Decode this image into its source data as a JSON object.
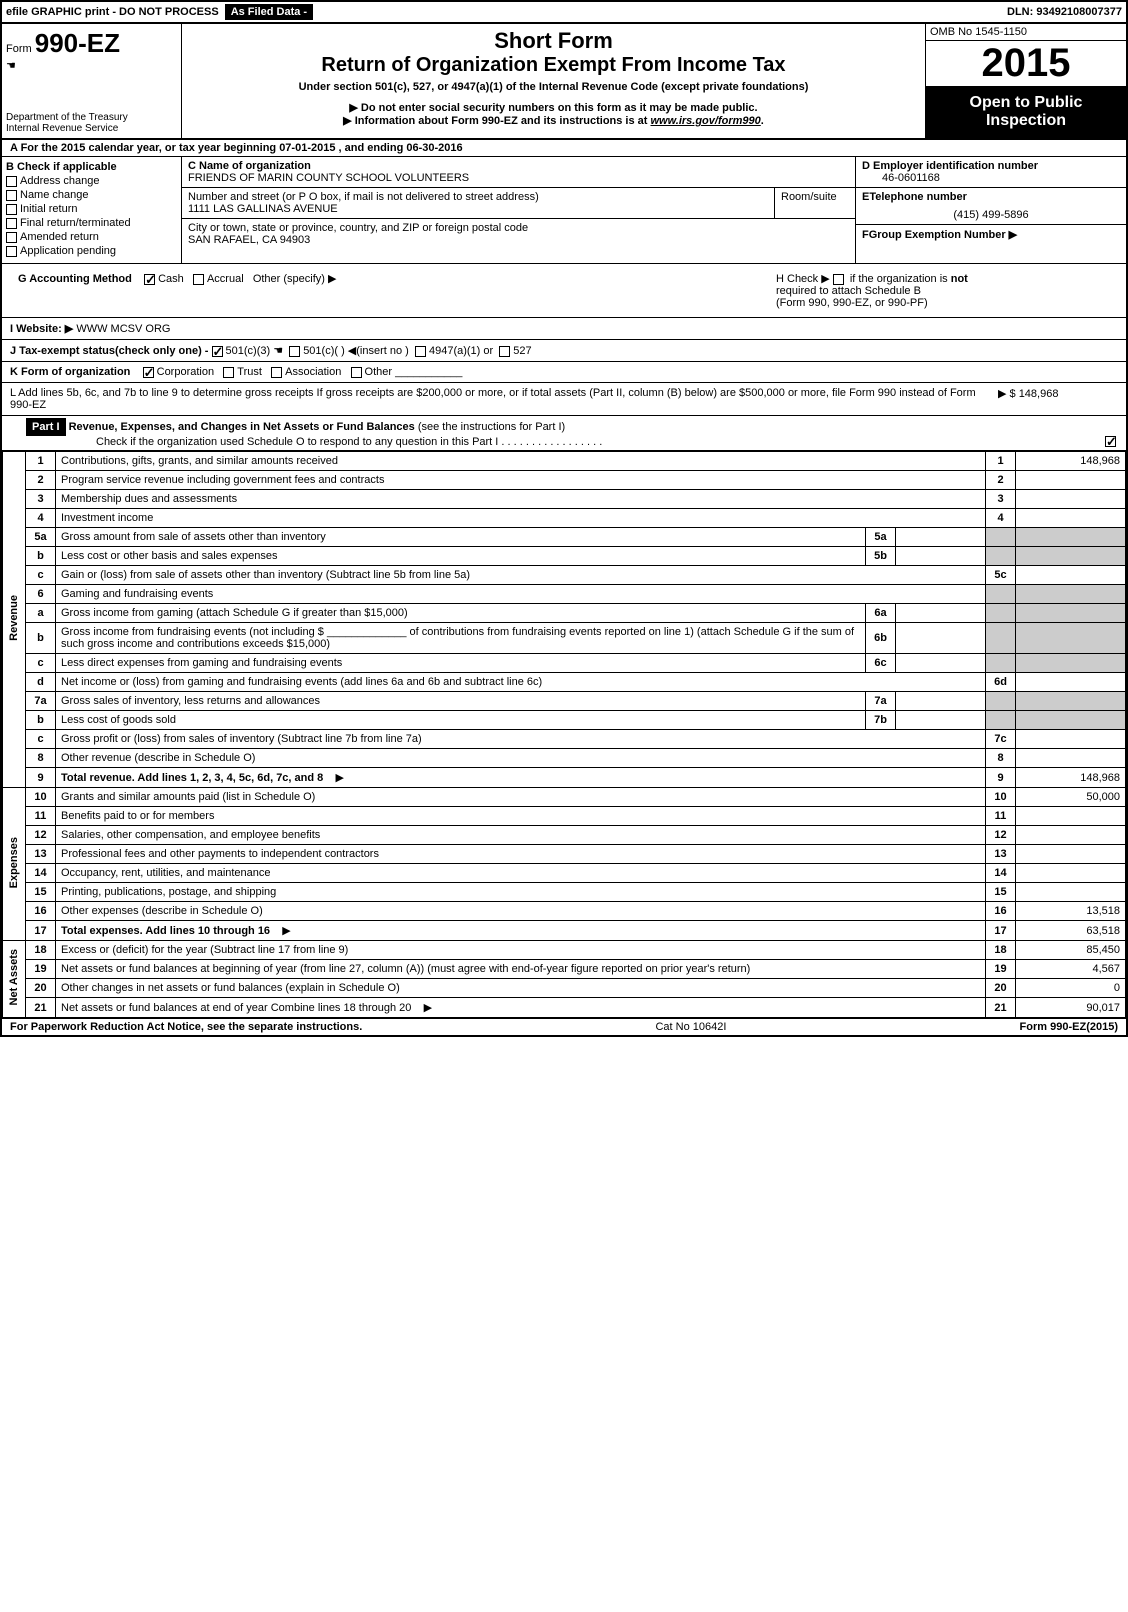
{
  "topbar": {
    "efile": "efile GRAPHIC print - DO NOT PROCESS",
    "asfiled": "As Filed Data -",
    "dln": "DLN: 93492108007377"
  },
  "header": {
    "form_prefix": "Form",
    "form_number": "990-EZ",
    "dept1": "Department of the Treasury",
    "dept2": "Internal Revenue Service",
    "short_form": "Short Form",
    "title": "Return of Organization Exempt From Income Tax",
    "under": "Under section 501(c), 527, or 4947(a)(1) of the Internal Revenue Code (except private foundations)",
    "warn1": "▶ Do not enter social security numbers on this form as it may be made public.",
    "warn2_pre": "▶ Information about Form 990-EZ and its instructions is at ",
    "warn2_link": "www.irs.gov/form990",
    "warn2_post": ".",
    "omb": "OMB No 1545-1150",
    "year": "2015",
    "open1": "Open to Public",
    "open2": "Inspection"
  },
  "lineA": "A  For the 2015 calendar year, or tax year beginning 07-01-2015             , and ending 06-30-2016",
  "colB": {
    "header": "B  Check if applicable",
    "items": [
      "Address change",
      "Name change",
      "Initial return",
      "Final return/terminated",
      "Amended return",
      "Application pending"
    ]
  },
  "colC": {
    "name_label": "C Name of organization",
    "name": "FRIENDS OF MARIN COUNTY SCHOOL VOLUNTEERS",
    "street_label": "Number and street (or P O box, if mail is not delivered to street address)",
    "room_label": "Room/suite",
    "street": "1111 LAS GALLINAS AVENUE",
    "city_label": "City or town, state or province, country, and ZIP or foreign postal code",
    "city": "SAN RAFAEL, CA  94903"
  },
  "colD": {
    "d_label": "D Employer identification number",
    "d_val": "46-0601168",
    "e_label": "ETelephone number",
    "e_val": "(415) 499-5896",
    "f_label": "FGroup Exemption Number    ▶"
  },
  "lineG": {
    "label": "G Accounting Method",
    "cash": "Cash",
    "accrual": "Accrual",
    "other": "Other (specify) ▶"
  },
  "lineH": {
    "text1": "H   Check ▶",
    "text2": "if the organization is",
    "not": "not",
    "text3": "required to attach Schedule B",
    "text4": "(Form 990, 990-EZ, or 990-PF)"
  },
  "lineI": {
    "label": "I Website: ▶",
    "val": "WWW MCSV ORG"
  },
  "lineJ": "J Tax-exempt status(check only one) - ",
  "lineJ_opts": {
    "a": "501(c)(3)",
    "b": "501(c)(  ) ◀(insert no )",
    "c": "4947(a)(1) or",
    "d": "527"
  },
  "lineK": {
    "label": "K Form of organization",
    "corp": "Corporation",
    "trust": "Trust",
    "assoc": "Association",
    "other": "Other"
  },
  "lineL": {
    "text": "L Add lines 5b, 6c, and 7b to line 9 to determine gross receipts  If gross receipts are $200,000 or more, or if total assets (Part II, column (B) below) are $500,000 or more, file Form 990 instead of Form 990-EZ",
    "val": "▶ $ 148,968"
  },
  "part1": {
    "label": "Part I",
    "title": "Revenue, Expenses, and Changes in Net Assets or Fund Balances",
    "subtitle": "(see the instructions for Part I)",
    "check": "Check if the organization used Schedule O to respond to any question in this Part I"
  },
  "sections": {
    "rev": "Revenue",
    "exp": "Expenses",
    "net": "Net Assets"
  },
  "rows": [
    {
      "n": "1",
      "d": "Contributions, gifts, grants, and similar amounts received",
      "r": "1",
      "v": "148,968"
    },
    {
      "n": "2",
      "d": "Program service revenue including government fees and contracts",
      "r": "2",
      "v": ""
    },
    {
      "n": "3",
      "d": "Membership dues and assessments",
      "r": "3",
      "v": ""
    },
    {
      "n": "4",
      "d": "Investment income",
      "r": "4",
      "v": ""
    },
    {
      "n": "5a",
      "d": "Gross amount from sale of assets other than inventory",
      "sub": "5a",
      "sv": ""
    },
    {
      "n": "b",
      "d": "Less  cost or other basis and sales expenses",
      "sub": "5b",
      "sv": ""
    },
    {
      "n": "c",
      "d": "Gain or (loss) from sale of assets other than inventory (Subtract line 5b from line 5a)",
      "r": "5c",
      "v": ""
    },
    {
      "n": "6",
      "d": "Gaming and fundraising events"
    },
    {
      "n": "a",
      "d": "Gross income from gaming (attach Schedule G if greater than $15,000)",
      "sub": "6a",
      "sv": ""
    },
    {
      "n": "b",
      "d": "Gross income from fundraising events (not including $ _____________ of contributions from fundraising events reported on line 1) (attach Schedule G if the sum of such gross income and contributions exceeds $15,000)",
      "sub": "6b",
      "sv": ""
    },
    {
      "n": "c",
      "d": "Less  direct expenses from gaming and fundraising events",
      "sub": "6c",
      "sv": ""
    },
    {
      "n": "d",
      "d": "Net income or (loss) from gaming and fundraising events (add lines 6a and 6b and subtract line 6c)",
      "r": "6d",
      "v": ""
    },
    {
      "n": "7a",
      "d": "Gross sales of inventory, less returns and allowances",
      "sub": "7a",
      "sv": ""
    },
    {
      "n": "b",
      "d": "Less  cost of goods sold",
      "sub": "7b",
      "sv": ""
    },
    {
      "n": "c",
      "d": "Gross profit or (loss) from sales of inventory (Subtract line 7b from line 7a)",
      "r": "7c",
      "v": ""
    },
    {
      "n": "8",
      "d": "Other revenue (describe in Schedule O)",
      "r": "8",
      "v": ""
    },
    {
      "n": "9",
      "d": "Total revenue. Add lines 1, 2, 3, 4, 5c, 6d, 7c, and 8",
      "r": "9",
      "v": "148,968",
      "bold": true,
      "arrow": true
    },
    {
      "n": "10",
      "d": "Grants and similar amounts paid (list in Schedule O)",
      "r": "10",
      "v": "50,000"
    },
    {
      "n": "11",
      "d": "Benefits paid to or for members",
      "r": "11",
      "v": ""
    },
    {
      "n": "12",
      "d": "Salaries, other compensation, and employee benefits",
      "r": "12",
      "v": ""
    },
    {
      "n": "13",
      "d": "Professional fees and other payments to independent contractors",
      "r": "13",
      "v": ""
    },
    {
      "n": "14",
      "d": "Occupancy, rent, utilities, and maintenance",
      "r": "14",
      "v": ""
    },
    {
      "n": "15",
      "d": "Printing, publications, postage, and shipping",
      "r": "15",
      "v": ""
    },
    {
      "n": "16",
      "d": "Other expenses (describe in Schedule O)",
      "r": "16",
      "v": "13,518"
    },
    {
      "n": "17",
      "d": "Total expenses. Add lines 10 through 16",
      "r": "17",
      "v": "63,518",
      "bold": true,
      "arrow": true
    },
    {
      "n": "18",
      "d": "Excess or (deficit) for the year (Subtract line 17 from line 9)",
      "r": "18",
      "v": "85,450"
    },
    {
      "n": "19",
      "d": "Net assets or fund balances at beginning of year (from line 27, column (A)) (must agree with end-of-year figure reported on prior year's return)",
      "r": "19",
      "v": "4,567"
    },
    {
      "n": "20",
      "d": "Other changes in net assets or fund balances (explain in Schedule O)",
      "r": "20",
      "v": "0"
    },
    {
      "n": "21",
      "d": "Net assets or fund balances at end of year  Combine lines 18 through 20",
      "r": "21",
      "v": "90,017",
      "arrow": true
    }
  ],
  "footer": {
    "left": "For Paperwork Reduction Act Notice, see the separate instructions.",
    "mid": "Cat No 10642I",
    "right": "Form 990-EZ (2015)"
  }
}
